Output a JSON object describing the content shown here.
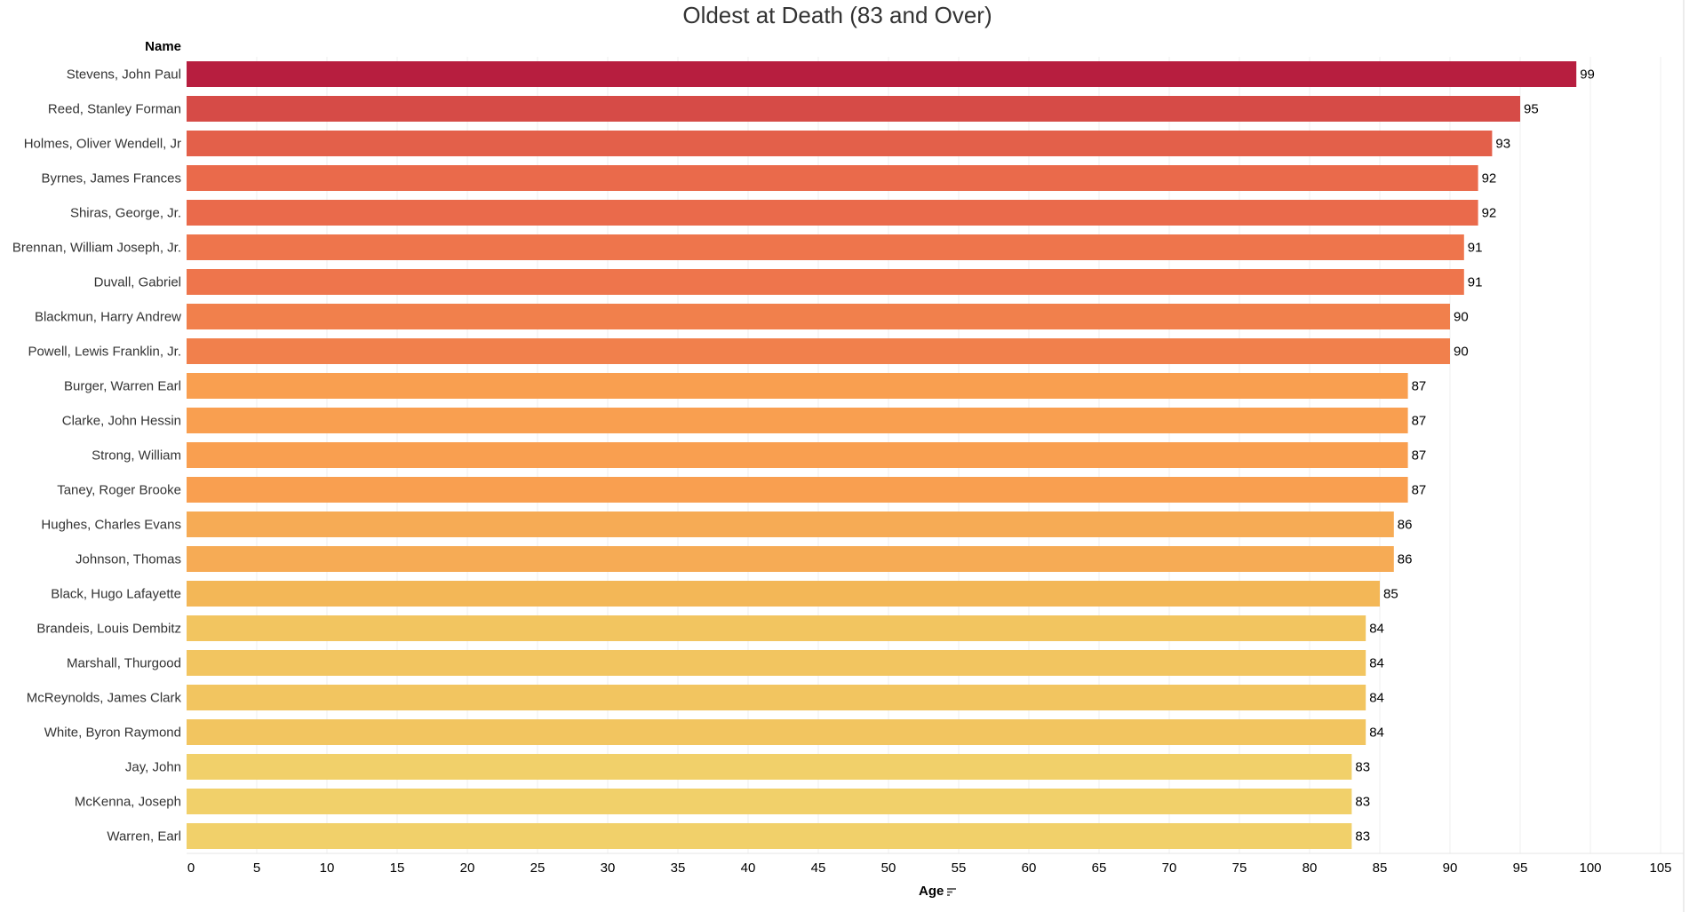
{
  "chart_data": {
    "type": "bar",
    "orientation": "horizontal",
    "title": "Oldest at Death (83 and Over)",
    "row_header": "Name",
    "xlabel": "Age",
    "xlim": [
      0,
      105
    ],
    "xticks": [
      0,
      5,
      10,
      15,
      20,
      25,
      30,
      35,
      40,
      45,
      50,
      55,
      60,
      65,
      70,
      75,
      80,
      85,
      90,
      95,
      100,
      105
    ],
    "grid": true,
    "data_labels": true,
    "sorted": "descending",
    "categories": [
      "Stevens, John Paul",
      "Reed, Stanley Forman",
      "Holmes, Oliver Wendell, Jr",
      "Byrnes, James Frances",
      "Shiras, George, Jr.",
      "Brennan, William Joseph, Jr.",
      "Duvall, Gabriel",
      "Blackmun, Harry Andrew",
      "Powell, Lewis Franklin, Jr.",
      "Burger, Warren Earl",
      "Clarke, John Hessin",
      "Strong, William",
      "Taney, Roger Brooke",
      "Hughes, Charles Evans",
      "Johnson, Thomas",
      "Black, Hugo Lafayette",
      "Brandeis, Louis Dembitz",
      "Marshall, Thurgood",
      "McReynolds, James Clark",
      "White, Byron Raymond",
      "Jay, John",
      "McKenna, Joseph",
      "Warren, Earl"
    ],
    "values": [
      99,
      95,
      93,
      92,
      92,
      91,
      91,
      90,
      90,
      87,
      87,
      87,
      87,
      86,
      86,
      85,
      84,
      84,
      84,
      84,
      83,
      83,
      83
    ],
    "color_scale": [
      {
        "value": 83,
        "color": "#F1D06A"
      },
      {
        "value": 84,
        "color": "#F2C560"
      },
      {
        "value": 85,
        "color": "#F3B757"
      },
      {
        "value": 86,
        "color": "#F6AB55"
      },
      {
        "value": 87,
        "color": "#F99F50"
      },
      {
        "value": 90,
        "color": "#F1804C"
      },
      {
        "value": 92,
        "color": "#EA6A4B"
      },
      {
        "value": 93,
        "color": "#E3604A"
      },
      {
        "value": 95,
        "color": "#D64B47"
      },
      {
        "value": 99,
        "color": "#B71E3F"
      }
    ]
  }
}
